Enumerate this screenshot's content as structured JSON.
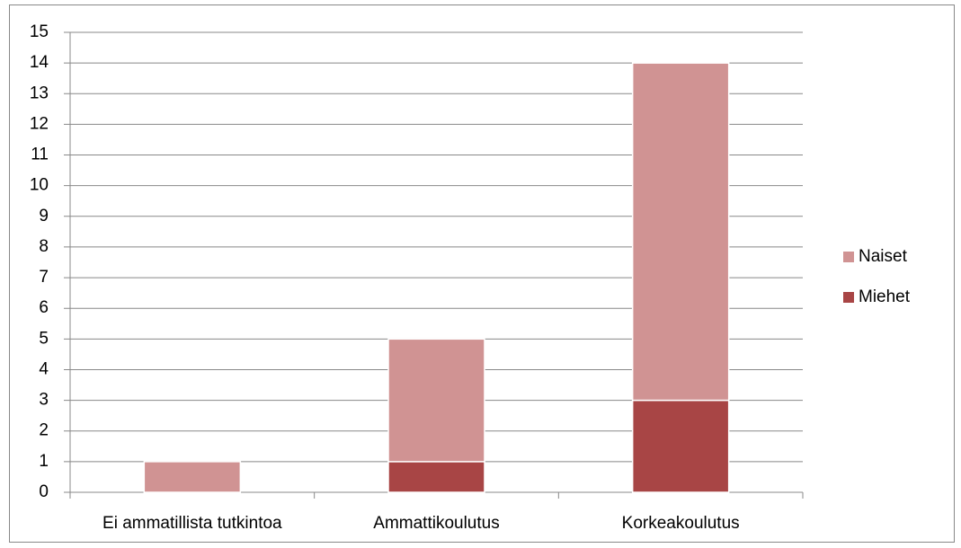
{
  "chart_data": {
    "type": "stacked_bar",
    "categories": [
      "Ei ammatillista tutkintoa",
      "Ammattikoulutus",
      "Korkeakoulutus"
    ],
    "series": [
      {
        "name": "Miehet",
        "color": "#a84545",
        "values": [
          0,
          1,
          3
        ]
      },
      {
        "name": "Naiset",
        "color": "#d09393",
        "values": [
          1,
          4,
          11
        ]
      }
    ],
    "ylim": [
      0,
      15
    ],
    "yticks": [
      0,
      1,
      2,
      3,
      4,
      5,
      6,
      7,
      8,
      9,
      10,
      11,
      12,
      13,
      14,
      15
    ],
    "grid": true,
    "legend": "right"
  }
}
